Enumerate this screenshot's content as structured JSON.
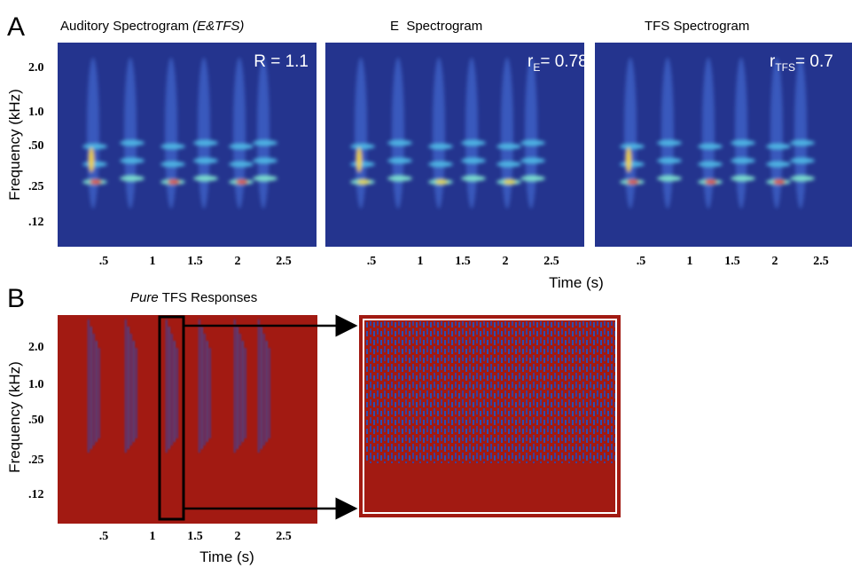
{
  "panel_a": {
    "label": "A",
    "plots": [
      {
        "title": "Auditory Spectrogram",
        "title_italic": "(E&TFS)",
        "annotation": "R = 1.1"
      },
      {
        "title": "E  Spectrogram",
        "annotation_var": "r",
        "annotation_sub": "E",
        "annotation_value": "= 0.78"
      },
      {
        "title": "TFS Spectrogram",
        "annotation_var": "r",
        "annotation_sub": "TFS",
        "annotation_value": "= 0.7"
      }
    ],
    "y_axis_label": "Frequency (kHz)",
    "y_ticks": [
      "2.0",
      "1.0",
      ".50",
      ".25",
      ".12"
    ],
    "x_ticks": [
      ".5",
      "1",
      "1.5",
      "2",
      "2.5"
    ],
    "x_axis_label": "Time (s)"
  },
  "panel_b": {
    "label": "B",
    "title_italic": "Pure",
    "title": "TFS Responses",
    "y_axis_label": "Frequency (kHz)",
    "y_ticks": [
      "2.0",
      "1.0",
      ".50",
      ".25",
      ".12"
    ],
    "x_ticks": [
      ".5",
      "1",
      "1.5",
      "2",
      "2.5"
    ],
    "x_axis_label": "Time (s)"
  }
}
